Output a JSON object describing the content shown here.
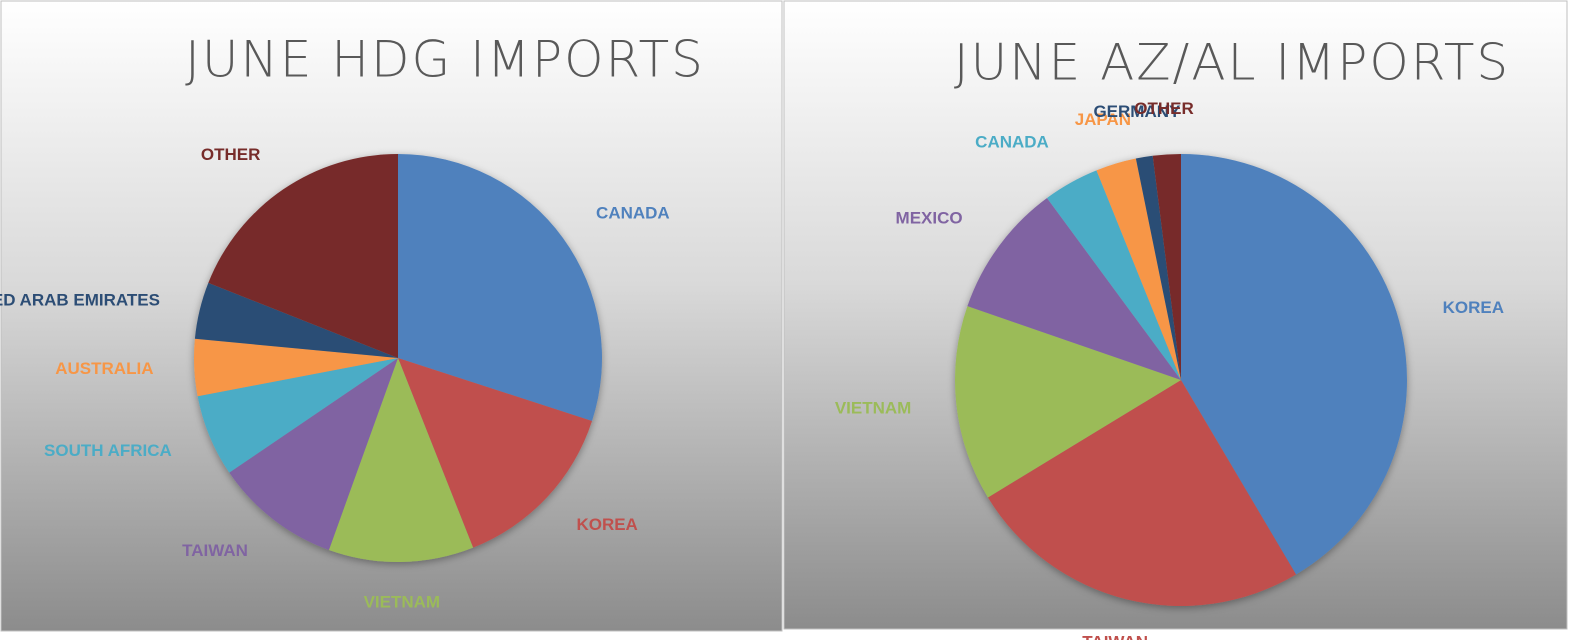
{
  "chart_data": [
    {
      "type": "pie",
      "title": "JUNE HDG IMPORTS",
      "categories": [
        "CANADA",
        "KOREA",
        "VIETNAM",
        "TAIWAN",
        "SOUTH AFRICA",
        "AUSTRALIA",
        "UNITED ARAB EMIRATES",
        "OTHER"
      ],
      "values": [
        30,
        14,
        11.5,
        10,
        6.5,
        4.5,
        4.5,
        19
      ],
      "colors": [
        "#4f81bd",
        "#c0504d",
        "#9bbb59",
        "#8064a2",
        "#4bacc6",
        "#f79646",
        "#2c4d75",
        "#772c2a"
      ]
    },
    {
      "type": "pie",
      "title": "JUNE AZ/AL IMPORTS",
      "categories": [
        "KOREA",
        "TAIWAN",
        "VIETNAM",
        "MEXICO",
        "CANADA",
        "JAPAN",
        "GERMANY",
        "OTHER"
      ],
      "values": [
        41.5,
        24.8,
        14,
        9.6,
        4,
        2.9,
        1.2,
        2
      ],
      "colors": [
        "#4f81bd",
        "#c0504d",
        "#9bbb59",
        "#8064a2",
        "#4bacc6",
        "#f79646",
        "#2c4d75",
        "#772c2a"
      ]
    }
  ]
}
